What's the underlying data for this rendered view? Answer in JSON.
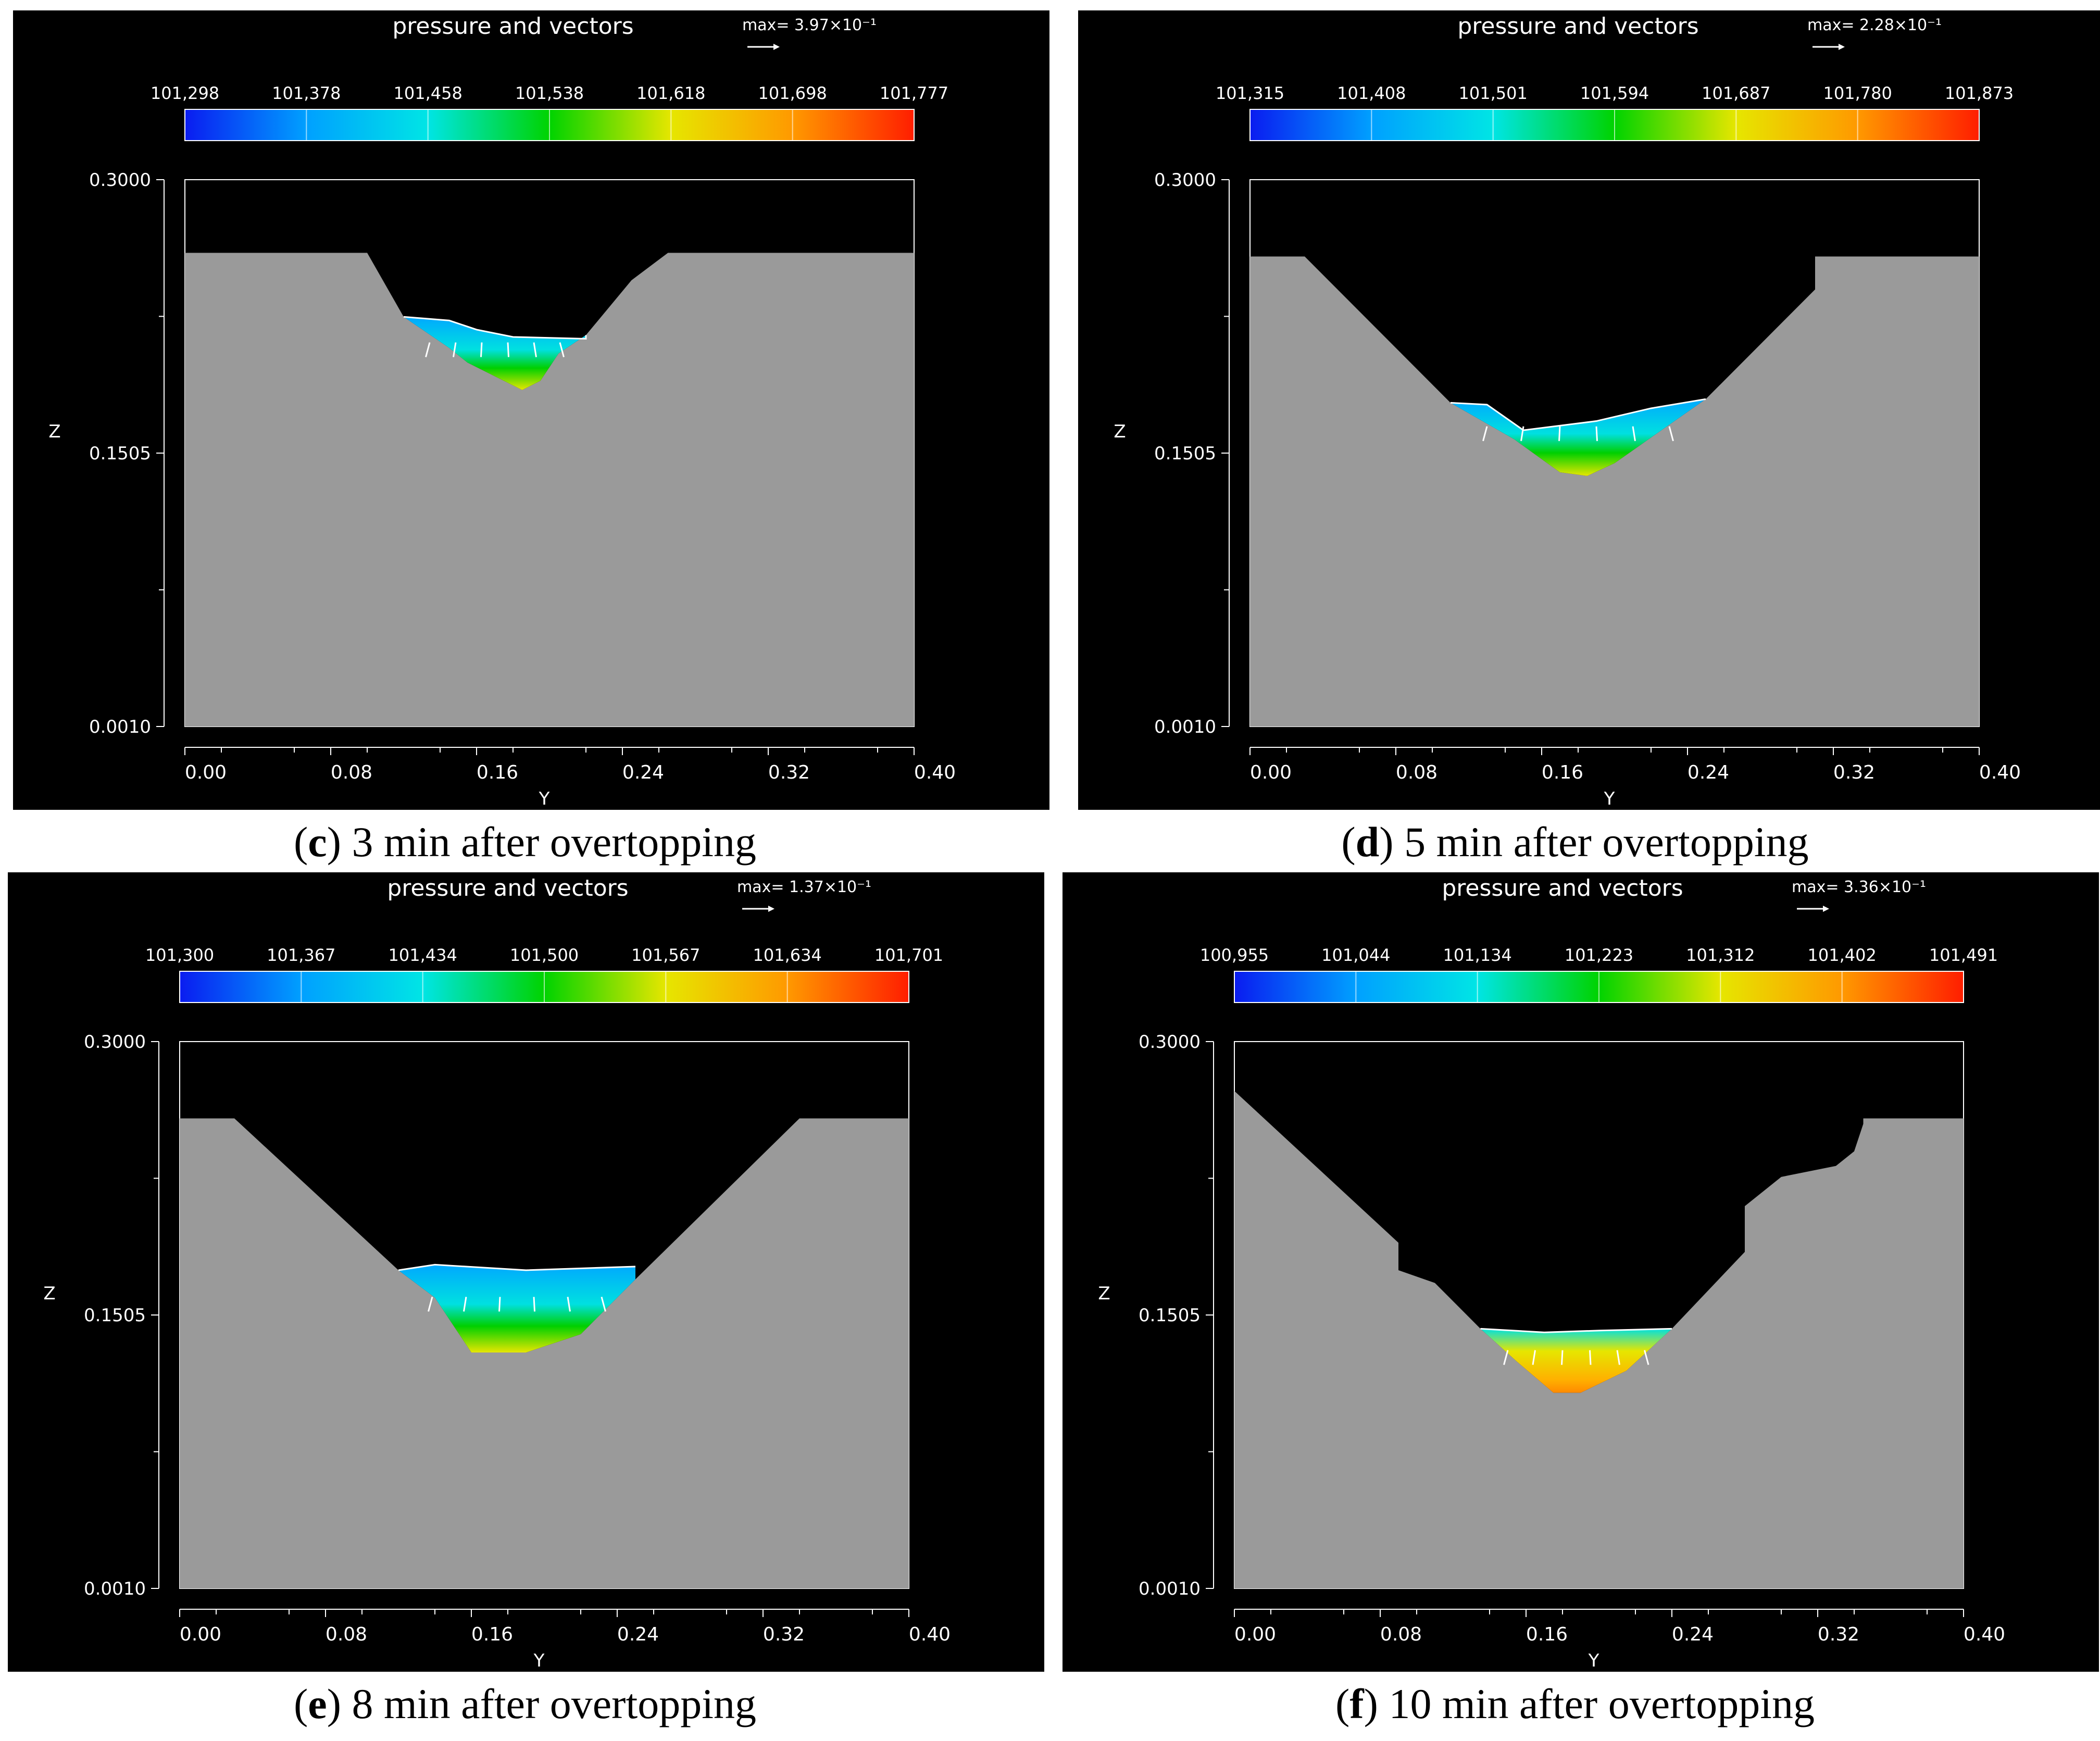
{
  "panels": [
    {
      "letter": "c",
      "caption": " 3 min after overtopping",
      "chart_data": {
        "type": "contour",
        "title": "pressure and vectors",
        "vector_max": "max= 3.97×10⁻¹",
        "colorbar_ticks": [
          "101,298",
          "101,378",
          "101,458",
          "101,538",
          "101,618",
          "101,698",
          "101,777"
        ],
        "xlabel": "Y",
        "ylabel": "Z",
        "xticks": [
          "0.00",
          "0.08",
          "0.16",
          "0.24",
          "0.32",
          "0.40"
        ],
        "yticks": [
          "0.3000",
          "0.1505",
          "0.0010"
        ],
        "xlim": [
          0,
          0.4
        ],
        "ylim": [
          0.001,
          0.3
        ],
        "dam_profile": [
          [
            0,
            0.26
          ],
          [
            0.1,
            0.26
          ],
          [
            0.12,
            0.225
          ],
          [
            0.145,
            0.208
          ],
          [
            0.155,
            0.2
          ],
          [
            0.175,
            0.19
          ],
          [
            0.185,
            0.185
          ],
          [
            0.195,
            0.19
          ],
          [
            0.205,
            0.205
          ],
          [
            0.22,
            0.215
          ],
          [
            0.245,
            0.245
          ],
          [
            0.265,
            0.26
          ],
          [
            0.4,
            0.26
          ]
        ],
        "water_surface": [
          [
            0.12,
            0.225
          ],
          [
            0.145,
            0.223
          ],
          [
            0.16,
            0.218
          ],
          [
            0.18,
            0.214
          ],
          [
            0.22,
            0.213
          ],
          [
            0.22,
            0.215
          ]
        ],
        "colors": [
          "#0a1cf0",
          "#00a0ff",
          "#00e5e5",
          "#00d300",
          "#e6e600",
          "#ff9900",
          "#ff1e00"
        ]
      }
    },
    {
      "letter": "d",
      "caption": " 5 min after overtopping",
      "chart_data": {
        "type": "contour",
        "title": "pressure and vectors",
        "vector_max": "max= 2.28×10⁻¹",
        "colorbar_ticks": [
          "101,315",
          "101,408",
          "101,501",
          "101,594",
          "101,687",
          "101,780",
          "101,873"
        ],
        "xlabel": "Y",
        "ylabel": "Z",
        "xticks": [
          "0.00",
          "0.08",
          "0.16",
          "0.24",
          "0.32",
          "0.40"
        ],
        "yticks": [
          "0.3000",
          "0.1505",
          "0.0010"
        ],
        "xlim": [
          0,
          0.4
        ],
        "ylim": [
          0.001,
          0.3
        ],
        "dam_profile": [
          [
            0,
            0.258
          ],
          [
            0.03,
            0.258
          ],
          [
            0.11,
            0.178
          ],
          [
            0.145,
            0.158
          ],
          [
            0.17,
            0.14
          ],
          [
            0.185,
            0.138
          ],
          [
            0.2,
            0.145
          ],
          [
            0.25,
            0.18
          ],
          [
            0.31,
            0.24
          ],
          [
            0.31,
            0.258
          ],
          [
            0.4,
            0.258
          ]
        ],
        "water_surface": [
          [
            0.11,
            0.178
          ],
          [
            0.13,
            0.177
          ],
          [
            0.15,
            0.163
          ],
          [
            0.19,
            0.168
          ],
          [
            0.22,
            0.175
          ],
          [
            0.25,
            0.18
          ]
        ],
        "colors": [
          "#0a1cf0",
          "#00a0ff",
          "#00e5e5",
          "#00d300",
          "#e6e600",
          "#ff9900",
          "#ff1e00"
        ]
      }
    },
    {
      "letter": "e",
      "caption": " 8 min after overtopping",
      "chart_data": {
        "type": "contour",
        "title": "pressure and vectors",
        "vector_max": "max= 1.37×10⁻¹",
        "colorbar_ticks": [
          "101,300",
          "101,367",
          "101,434",
          "101,500",
          "101,567",
          "101,634",
          "101,701"
        ],
        "xlabel": "Y",
        "ylabel": "Z",
        "xticks": [
          "0.00",
          "0.08",
          "0.16",
          "0.24",
          "0.32",
          "0.40"
        ],
        "yticks": [
          "0.3000",
          "0.1505",
          "0.0010"
        ],
        "xlim": [
          0,
          0.4
        ],
        "ylim": [
          0.001,
          0.3
        ],
        "dam_profile": [
          [
            0,
            0.258
          ],
          [
            0.03,
            0.258
          ],
          [
            0.12,
            0.175
          ],
          [
            0.14,
            0.16
          ],
          [
            0.16,
            0.13
          ],
          [
            0.19,
            0.13
          ],
          [
            0.22,
            0.14
          ],
          [
            0.25,
            0.17
          ],
          [
            0.34,
            0.258
          ],
          [
            0.4,
            0.258
          ]
        ],
        "water_surface": [
          [
            0.12,
            0.175
          ],
          [
            0.14,
            0.178
          ],
          [
            0.19,
            0.175
          ],
          [
            0.22,
            0.176
          ],
          [
            0.25,
            0.177
          ]
        ],
        "colors": [
          "#0a1cf0",
          "#00a0ff",
          "#00e5e5",
          "#00d300",
          "#e6e600",
          "#ff9900",
          "#ff1e00"
        ]
      }
    },
    {
      "letter": "f",
      "caption": " 10 min after overtopping",
      "chart_data": {
        "type": "contour",
        "title": "pressure and vectors",
        "vector_max": "max= 3.36×10⁻¹",
        "colorbar_ticks": [
          "100,955",
          "101,044",
          "101,134",
          "101,223",
          "101,312",
          "101,402",
          "101,491"
        ],
        "xlabel": "Y",
        "ylabel": "Z",
        "xticks": [
          "0.00",
          "0.08",
          "0.16",
          "0.24",
          "0.32",
          "0.40"
        ],
        "yticks": [
          "0.3000",
          "0.1505",
          "0.0010"
        ],
        "xlim": [
          0,
          0.4
        ],
        "ylim": [
          0.001,
          0.3
        ],
        "dam_profile": [
          [
            0,
            0.273
          ],
          [
            0.09,
            0.19
          ],
          [
            0.09,
            0.175
          ],
          [
            0.11,
            0.168
          ],
          [
            0.135,
            0.143
          ],
          [
            0.155,
            0.125
          ],
          [
            0.175,
            0.108
          ],
          [
            0.19,
            0.108
          ],
          [
            0.215,
            0.12
          ],
          [
            0.24,
            0.143
          ],
          [
            0.28,
            0.185
          ],
          [
            0.28,
            0.21
          ],
          [
            0.3,
            0.226
          ],
          [
            0.33,
            0.232
          ],
          [
            0.34,
            0.24
          ],
          [
            0.345,
            0.255
          ],
          [
            0.345,
            0.258
          ],
          [
            0.4,
            0.258
          ]
        ],
        "water_surface": [
          [
            0.135,
            0.143
          ],
          [
            0.17,
            0.141
          ],
          [
            0.2,
            0.142
          ],
          [
            0.24,
            0.143
          ]
        ],
        "colors": [
          "#0a1cf0",
          "#00a0ff",
          "#00e5e5",
          "#00d300",
          "#e6e600",
          "#ff9900",
          "#ff1e00"
        ]
      }
    }
  ]
}
